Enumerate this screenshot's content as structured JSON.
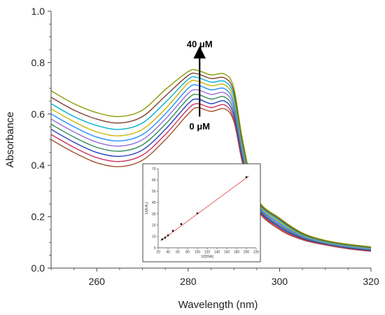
{
  "chart_data": [
    {
      "type": "line",
      "xlabel": "Wavelength (nm)",
      "ylabel": "Absorbance",
      "xlim": [
        250,
        320
      ],
      "ylim": [
        0.0,
        1.0
      ],
      "xticks": [
        260,
        280,
        300,
        320
      ],
      "xtick_labels": [
        "260",
        "280",
        "300",
        "320"
      ],
      "yticks": [
        0.0,
        0.2,
        0.4,
        0.6,
        0.8,
        1.0
      ],
      "ytick_labels": [
        "0.0",
        "0.2",
        "0.4",
        "0.6",
        "0.8",
        "1.0"
      ],
      "grid": false,
      "annotations": [
        {
          "text": "40 μM",
          "x": 282.5,
          "y": 0.86
        },
        {
          "text": "0 μM",
          "x": 282.5,
          "y": 0.54
        }
      ],
      "arrow": {
        "from": [
          282.5,
          0.59
        ],
        "to": [
          282.5,
          0.84
        ]
      },
      "x": [
        250,
        255,
        260,
        265,
        270,
        275,
        280,
        282,
        285,
        288,
        290,
        292,
        295,
        300,
        305,
        310,
        315,
        320
      ],
      "series": [
        {
          "color": "#a0522d",
          "values": [
            0.5,
            0.45,
            0.41,
            0.395,
            0.42,
            0.5,
            0.6,
            0.625,
            0.61,
            0.62,
            0.57,
            0.4,
            0.23,
            0.15,
            0.11,
            0.09,
            0.075,
            0.065
          ]
        },
        {
          "color": "#d03060",
          "values": [
            0.52,
            0.47,
            0.43,
            0.415,
            0.44,
            0.52,
            0.62,
            0.64,
            0.625,
            0.635,
            0.58,
            0.41,
            0.235,
            0.155,
            0.113,
            0.092,
            0.077,
            0.067
          ]
        },
        {
          "color": "#2040c0",
          "values": [
            0.54,
            0.49,
            0.45,
            0.435,
            0.46,
            0.54,
            0.64,
            0.658,
            0.64,
            0.65,
            0.595,
            0.42,
            0.24,
            0.16,
            0.116,
            0.094,
            0.079,
            0.069
          ]
        },
        {
          "color": "#2e8b57",
          "values": [
            0.56,
            0.51,
            0.47,
            0.455,
            0.48,
            0.56,
            0.66,
            0.676,
            0.658,
            0.666,
            0.61,
            0.43,
            0.245,
            0.165,
            0.119,
            0.096,
            0.081,
            0.071
          ]
        },
        {
          "color": "#9370db",
          "values": [
            0.58,
            0.53,
            0.49,
            0.475,
            0.5,
            0.58,
            0.68,
            0.694,
            0.676,
            0.682,
            0.625,
            0.44,
            0.25,
            0.17,
            0.122,
            0.098,
            0.083,
            0.073
          ]
        },
        {
          "color": "#1e90ff",
          "values": [
            0.6,
            0.55,
            0.51,
            0.495,
            0.52,
            0.6,
            0.7,
            0.712,
            0.694,
            0.698,
            0.64,
            0.45,
            0.255,
            0.175,
            0.125,
            0.1,
            0.085,
            0.075
          ]
        },
        {
          "color": "#c8b400",
          "values": [
            0.62,
            0.57,
            0.53,
            0.515,
            0.54,
            0.62,
            0.72,
            0.728,
            0.71,
            0.713,
            0.655,
            0.46,
            0.26,
            0.18,
            0.128,
            0.102,
            0.087,
            0.077
          ]
        },
        {
          "color": "#00b0d0",
          "values": [
            0.64,
            0.59,
            0.555,
            0.54,
            0.565,
            0.645,
            0.735,
            0.742,
            0.724,
            0.726,
            0.67,
            0.47,
            0.265,
            0.185,
            0.131,
            0.104,
            0.089,
            0.079
          ]
        },
        {
          "color": "#804030",
          "values": [
            0.665,
            0.615,
            0.58,
            0.565,
            0.59,
            0.67,
            0.75,
            0.756,
            0.738,
            0.74,
            0.685,
            0.48,
            0.27,
            0.19,
            0.134,
            0.106,
            0.091,
            0.081
          ]
        },
        {
          "color": "#8a9a00",
          "values": [
            0.69,
            0.64,
            0.605,
            0.59,
            0.615,
            0.695,
            0.765,
            0.77,
            0.752,
            0.755,
            0.7,
            0.49,
            0.275,
            0.195,
            0.137,
            0.108,
            0.093,
            0.083
          ]
        }
      ]
    },
    {
      "type": "scatter",
      "xlabel": "1/[DNA]",
      "ylabel": "1/(A-A₀)",
      "xlim": [
        20,
        220
      ],
      "ylim": [
        0,
        70
      ],
      "xticks": [
        20,
        40,
        60,
        80,
        100,
        120,
        140,
        160,
        180,
        200,
        220
      ],
      "xtick_labels": [
        "20",
        "40",
        "60",
        "80",
        "100",
        "120",
        "140",
        "160",
        "180",
        "200",
        "220"
      ],
      "yticks": [
        0,
        10,
        20,
        30,
        40,
        50,
        60,
        70
      ],
      "ytick_labels": [
        "0",
        "10",
        "20",
        "30",
        "40",
        "50",
        "60",
        "70"
      ],
      "points": {
        "x": [
          28,
          34,
          40,
          50,
          67,
          100,
          200
        ],
        "y": [
          7.5,
          9.0,
          11.0,
          15.0,
          21.0,
          30.5,
          62.5
        ]
      },
      "fit_line": {
        "x": [
          25,
          205
        ],
        "y": [
          6.0,
          63.5
        ],
        "color": "#e04040"
      }
    }
  ]
}
